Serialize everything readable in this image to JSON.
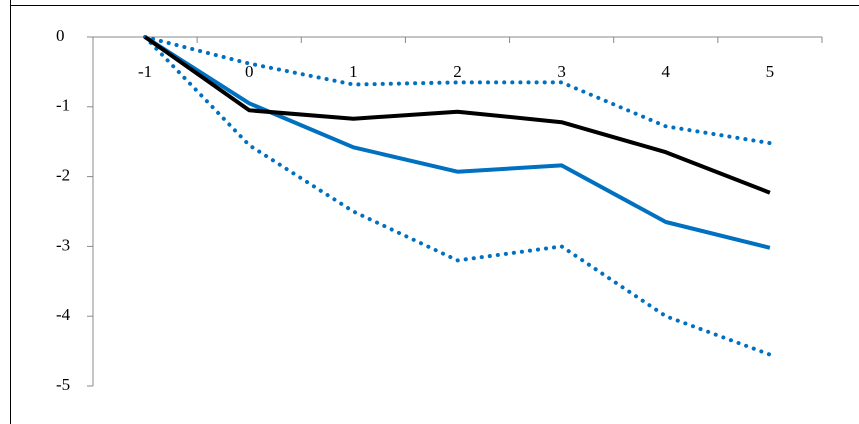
{
  "chart_data": {
    "type": "line",
    "categories": [
      -1,
      0,
      1,
      2,
      3,
      4,
      5
    ],
    "series": [
      {
        "color": "#0070c0",
        "style": "dotted",
        "values": [
          0,
          -0.38,
          -0.68,
          -0.65,
          -0.65,
          -1.28,
          -1.52
        ]
      },
      {
        "color": "#0070c0",
        "style": "dotted",
        "values": [
          0,
          -1.55,
          -2.5,
          -3.2,
          -3.0,
          -4.0,
          -4.55
        ]
      },
      {
        "color": "#0070c0",
        "style": "solid",
        "values": [
          0,
          -0.95,
          -1.58,
          -1.93,
          -1.84,
          -2.65,
          -3.02
        ]
      },
      {
        "color": "#000000",
        "style": "solid",
        "values": [
          0,
          -1.05,
          -1.17,
          -1.07,
          -1.22,
          -1.65,
          -2.23
        ]
      }
    ],
    "ylim": [
      -5,
      0
    ],
    "yticks": [
      0,
      -1,
      -2,
      -3,
      -4,
      -5
    ]
  }
}
